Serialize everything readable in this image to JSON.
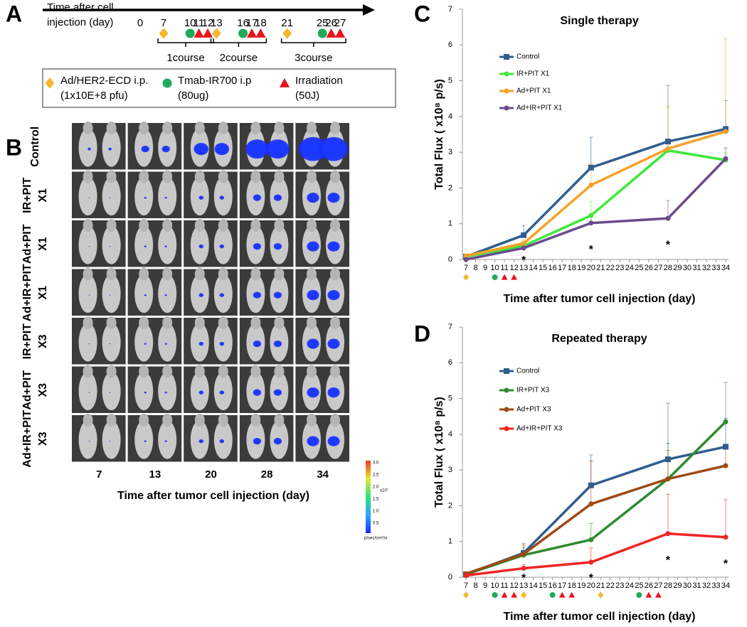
{
  "panels": [
    "A",
    "B",
    "C",
    "D"
  ],
  "timeline": {
    "label": [
      "Time after cell",
      "injection (day)"
    ],
    "days": [
      0,
      7,
      10,
      11,
      12,
      13,
      16,
      17,
      18,
      21,
      25,
      26,
      27
    ],
    "treatments": [
      {
        "shape": "diamond",
        "color": "#f5b82e",
        "days": [
          7,
          13,
          21
        ],
        "legend": [
          "Ad/HER2-ECD i.p.",
          "(1x10E+8 pfu)"
        ]
      },
      {
        "shape": "circle",
        "color": "#1fa95a",
        "days": [
          10,
          16,
          25
        ],
        "legend": [
          "Tmab-IR700 i.p",
          "(80ug)"
        ]
      },
      {
        "shape": "triangle",
        "color": "#e8141c",
        "days": [
          11,
          12,
          17,
          18,
          26,
          27
        ],
        "legend": [
          "Irradiation",
          "(50J)"
        ]
      }
    ],
    "courses": [
      {
        "label": "1course",
        "from": 7,
        "to": 12
      },
      {
        "label": "2course",
        "from": 13,
        "to": 18
      },
      {
        "label": "3course",
        "from": 21,
        "to": 27
      }
    ]
  },
  "imaging": {
    "rows": [
      [
        "Control"
      ],
      [
        "IR+PIT",
        "X1"
      ],
      [
        "Ad+PIT",
        "X1"
      ],
      [
        "Ad+IR+PIT",
        "X1"
      ],
      [
        "IR+PIT",
        "X3"
      ],
      [
        "Ad+PIT",
        "X3"
      ],
      [
        "Ad+IR+PIT",
        "X3"
      ]
    ],
    "columns": [
      "7",
      "13",
      "20",
      "28",
      "34"
    ],
    "xlabel": "Time after tumor cell injection (day)",
    "colorbar": {
      "ticks": [
        "3.0",
        "2.5",
        "2.0",
        "1.5",
        "1.0",
        "0.5"
      ],
      "scale": "x10⁷",
      "unit": "p/sec/cm²/sr"
    }
  },
  "chart_data": [
    {
      "type": "line",
      "title": "Single therapy",
      "xlabel": "Time after tumor cell injection (day)",
      "ylabel": "Total Flux ( x10⁸ p/s)",
      "x": [
        7,
        13,
        20,
        28,
        34
      ],
      "xlim": [
        7,
        34
      ],
      "xticks": [
        7,
        8,
        9,
        10,
        11,
        12,
        13,
        14,
        15,
        16,
        17,
        18,
        19,
        20,
        21,
        22,
        23,
        24,
        25,
        26,
        27,
        28,
        29,
        30,
        31,
        32,
        33,
        34
      ],
      "ylim": [
        0,
        7
      ],
      "yticks": [
        0,
        1,
        2,
        3,
        4,
        5,
        6,
        7
      ],
      "series": [
        {
          "name": "Control",
          "color": "#2f5d8f",
          "marker": "square",
          "values": [
            0.08,
            0.68,
            2.57,
            3.3,
            3.65
          ],
          "errors": [
            0.03,
            0.27,
            0.85,
            1.57,
            0.8
          ]
        },
        {
          "name": "IR+PIT X1",
          "color": "#3ee83a",
          "marker": "circle",
          "values": [
            0.08,
            0.38,
            1.23,
            3.05,
            2.78
          ],
          "errors": [
            0.03,
            0.1,
            0.4,
            1.2,
            0.2
          ]
        },
        {
          "name": "Ad+PIT X1",
          "color": "#f7a128",
          "marker": "circle",
          "values": [
            0.1,
            0.45,
            2.08,
            3.1,
            3.58
          ],
          "errors": [
            0.03,
            0.1,
            0.6,
            1.2,
            2.6
          ]
        },
        {
          "name": "Ad+IR+PIT X1",
          "color": "#6b4a8e",
          "marker": "circle",
          "values": [
            0.0,
            0.32,
            1.02,
            1.15,
            2.82
          ],
          "errors": [
            0.02,
            0.1,
            0.2,
            0.5,
            0.3
          ]
        }
      ],
      "treatments": [
        {
          "shape": "diamond",
          "color": "#f5b82e",
          "x": [
            7
          ]
        },
        {
          "shape": "circle",
          "color": "#1fa95a",
          "x": [
            10
          ]
        },
        {
          "shape": "triangle",
          "color": "#e8141c",
          "x": [
            11,
            12
          ]
        }
      ],
      "annotations": [
        {
          "text": "*",
          "x": 13
        },
        {
          "text": "*",
          "x": 20
        },
        {
          "text": "*",
          "x": 28
        }
      ]
    },
    {
      "type": "line",
      "title": "Repeated therapy",
      "xlabel": "Time after tumor cell injection (day)",
      "ylabel": "Total Flux ( x10⁸ p/s)",
      "x": [
        7,
        13,
        20,
        28,
        34
      ],
      "xlim": [
        7,
        34
      ],
      "xticks": [
        7,
        8,
        9,
        10,
        11,
        12,
        13,
        14,
        15,
        16,
        17,
        18,
        19,
        20,
        21,
        22,
        23,
        24,
        25,
        26,
        27,
        28,
        29,
        30,
        31,
        32,
        33,
        34
      ],
      "ylim": [
        0,
        7
      ],
      "yticks": [
        0,
        1,
        2,
        3,
        4,
        5,
        6,
        7
      ],
      "series": [
        {
          "name": "Control",
          "color": "#2f5d8f",
          "marker": "square",
          "values": [
            0.08,
            0.68,
            2.57,
            3.3,
            3.65
          ],
          "errors": [
            0.03,
            0.27,
            0.85,
            1.57,
            0.8
          ]
        },
        {
          "name": "IR+PIT X3",
          "color": "#2e8b2e",
          "marker": "circle",
          "values": [
            0.08,
            0.62,
            1.05,
            2.75,
            4.35
          ],
          "errors": [
            0.03,
            0.2,
            0.45,
            1.0,
            1.1
          ]
        },
        {
          "name": "Ad+PIT X3",
          "color": "#9c4b17",
          "marker": "circle",
          "values": [
            0.1,
            0.65,
            2.05,
            2.75,
            3.12
          ],
          "errors": [
            0.03,
            0.25,
            1.2,
            0.8,
            0.6
          ]
        },
        {
          "name": "Ad+IR+PIT X3",
          "color": "#f02424",
          "marker": "circle",
          "values": [
            0.05,
            0.25,
            0.42,
            1.22,
            1.12
          ],
          "errors": [
            0.02,
            0.1,
            0.4,
            1.1,
            1.05
          ]
        }
      ],
      "treatments": [
        {
          "shape": "diamond",
          "color": "#f5b82e",
          "x": [
            7,
            13,
            21
          ]
        },
        {
          "shape": "circle",
          "color": "#1fa95a",
          "x": [
            10,
            16,
            25
          ]
        },
        {
          "shape": "triangle",
          "color": "#e8141c",
          "x": [
            11,
            12,
            17,
            18,
            26,
            27
          ]
        }
      ],
      "annotations": [
        {
          "text": "*",
          "x": 13
        },
        {
          "text": "*",
          "x": 20
        },
        {
          "text": "*",
          "x": 28
        },
        {
          "text": "*",
          "x": 34
        }
      ]
    }
  ]
}
